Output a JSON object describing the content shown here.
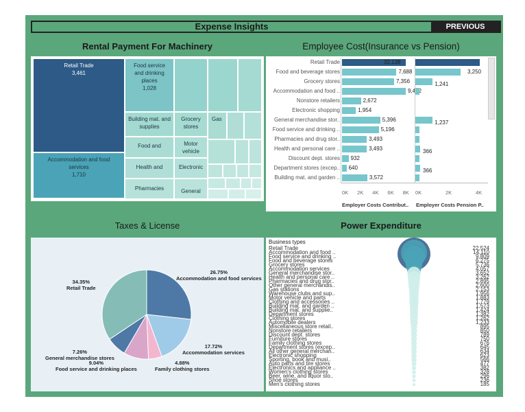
{
  "header": {
    "title": "Expense Insights",
    "previous_label": "PREVIOUS"
  },
  "panels": {
    "rental_title": "Rental Payment For Machinery",
    "employee_title": "Employee Cost(Insurance vs Pension)",
    "taxes_title": "Taxes & License",
    "power_title": "Power Expenditure"
  },
  "treemap": {
    "retail_label": "Retail Trade",
    "retail_value": "3,461",
    "accom_label": "Accommodation and food services",
    "accom_value": "1,710",
    "food_label": "Food service and drinking places",
    "food_value": "1,028",
    "building_label": "Building mat. and supplies",
    "grocery_label": "Grocery stores",
    "gas_label": "Gas",
    "fooda_label": "Food and",
    "motor_label": "Motor vehicle",
    "health_label": "Health and",
    "electronic_label": "Electronic",
    "pharm_label": "Pharmacies",
    "general_label": "General",
    "colors": {
      "dark": "#2d5a86",
      "mid": "#4aa3b7",
      "light": "#7cc4c6",
      "pale": "#a9dcd2"
    }
  },
  "chart_data": [
    {
      "type": "bar",
      "title": "Employee Cost(Insurance vs Pension)",
      "categories": [
        "Retail Trade",
        "Food and beverage stores",
        "Grocery stores",
        "Accommodation and food ..",
        "Nonstore retailers",
        "Electronic shopping",
        "General merchandise stor..",
        "Food service and drinking ..",
        "Pharmacies and drug stor..",
        "Health and personal care ..",
        "Discount dept. stores",
        "Department stores (excep..",
        "Building mat. and garden .."
      ],
      "series": [
        {
          "name": "Employer Costs Contribut..",
          "values": [
            32138,
            7688,
            7356,
            9472,
            2672,
            1954,
            5396,
            5196,
            3493,
            3493,
            932,
            640,
            3572
          ],
          "labels": [
            "32,138",
            "7,688",
            "7,356",
            "9,472",
            "2,672",
            "1,954",
            "5,396",
            "5,196",
            "3,493",
            "3,493",
            "932",
            "640",
            "3,572"
          ]
        },
        {
          "name": "Employer Costs Pension P..",
          "values": [
            8600,
            3250,
            1241,
            300,
            0,
            0,
            1237,
            300,
            300,
            366,
            300,
            366,
            300
          ],
          "labels": [
            "",
            "3,250",
            "1,241",
            "",
            "",
            "",
            "1,237",
            "",
            "",
            "366",
            "",
            "366",
            ""
          ]
        }
      ],
      "x_ticks_1": [
        "0K",
        "2K",
        "4K",
        "6K",
        "8K"
      ],
      "x_ticks_2": [
        "0K",
        "2K",
        "4K"
      ],
      "xlim_1": [
        0,
        9000
      ],
      "xlim_2": [
        0,
        4600
      ],
      "colors": {
        "highlight": "#2d5a86",
        "bar": "#76c6cc"
      }
    },
    {
      "type": "pie",
      "title": "Taxes & License",
      "slices": [
        {
          "label": "Accommodation and food services",
          "pct": "26.75%",
          "value": 26.75,
          "color": "#4e79a7"
        },
        {
          "label": "Accommodation services",
          "pct": "17.72%",
          "value": 17.72,
          "color": "#a0cbe8"
        },
        {
          "label": "Family clothing stores",
          "pct": "4.88%",
          "value": 4.88,
          "color": "#f4b6cf"
        },
        {
          "label": "Food service and drinking places",
          "pct": "9.04%",
          "value": 9.04,
          "color": "#d9a6c9"
        },
        {
          "label": "General merchandise stores",
          "pct": "7.26%",
          "value": 7.26,
          "color": "#4e79a7"
        },
        {
          "label": "Retail Trade",
          "pct": "34.35%",
          "value": 34.35,
          "color": "#86bcb6"
        }
      ]
    },
    {
      "type": "bar",
      "title": "Power Expenditure",
      "header": "Business types",
      "categories": [
        "Retail Trade",
        "Accommodation and food ..",
        "Food service and drinking ..",
        "Food and beverage stores",
        "Grocery stores",
        "Accommodation services",
        "General merchandise stor..",
        "Health and personal care ..",
        "Pharmacies and drug stor..",
        "Other general merchandis..",
        "Gas stations",
        "Warehouse clubs and sup..",
        "Motor vehicle and parts",
        "Clothing and accessories ..",
        "Building mat. and garden ..",
        "Building mat. and supplie..",
        "Department stores",
        "Clothing stores",
        "Automobile dealers",
        "Miscellaneous store retail..",
        "Nonstore retailers",
        "Discount dept. stores",
        "Furniture stores",
        "Family clothing stores",
        "Department stores (excep..",
        "All other general merchan..",
        "Electronic shopping",
        "Sporting, book and musi..",
        "Auto parts and tire stores",
        "Electronics and appliance ..",
        "Women's clothing stores",
        "Beer, wine, and liquor sto..",
        "Shoe stores",
        "Men's clothing stores"
      ],
      "values": [
        22524,
        14110,
        9809,
        6275,
        5736,
        4057,
        3652,
        3262,
        2895,
        2600,
        2153,
        1956,
        1883,
        1779,
        1573,
        1424,
        1382,
        1262,
        1233,
        895,
        850,
        789,
        750,
        676,
        645,
        634,
        623,
        566,
        477,
        382,
        328,
        296,
        236,
        185
      ],
      "labels": [
        "22,524",
        "14,110",
        "9,809",
        "6,275",
        "5,736",
        "4,057",
        "3,652",
        "3,262",
        "2,895",
        "2,600",
        "2,153",
        "1,956",
        "1,883",
        "1,779",
        "1,573",
        "1,424",
        "1,382",
        "1,262",
        "1,233",
        "895",
        "850",
        "789",
        "750",
        "676",
        "645",
        "634",
        "623",
        "566",
        "477",
        "382",
        "328",
        "296",
        "236",
        "185"
      ],
      "colors": {
        "top": "#2d5a86",
        "mid": "#4aa3b7",
        "low": "#cfeeea"
      }
    }
  ]
}
